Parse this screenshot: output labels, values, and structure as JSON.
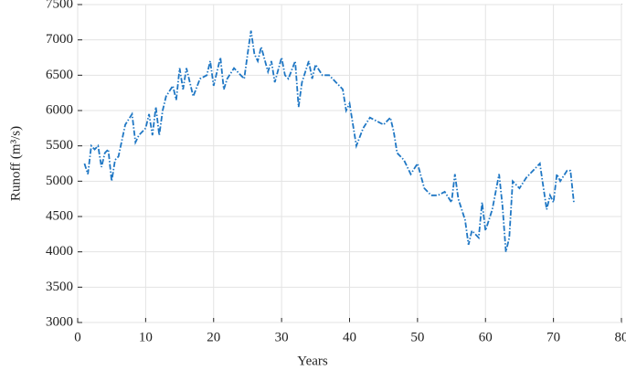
{
  "chart_data": {
    "type": "line",
    "xlabel": "Years",
    "ylabel": "Runoff (m³/s)",
    "xlim": [
      0,
      80
    ],
    "ylim": [
      3000,
      7500
    ],
    "xticks": [
      0,
      10,
      20,
      30,
      40,
      50,
      60,
      70,
      80
    ],
    "yticks": [
      3000,
      3500,
      4000,
      4500,
      5000,
      5500,
      6000,
      6500,
      7000,
      7500
    ],
    "grid": true,
    "series": [
      {
        "color": "#1f77c4",
        "x": [
          1,
          1.5,
          2,
          2.5,
          3,
          3.5,
          4,
          4.5,
          5,
          5.5,
          6,
          7,
          8,
          8.5,
          9,
          10,
          10.5,
          11,
          11.5,
          12,
          12.5,
          13,
          14,
          14.5,
          15,
          15.5,
          16,
          17,
          18,
          19,
          19.5,
          20,
          21,
          21.5,
          22,
          23,
          24,
          24.5,
          25,
          25.5,
          26,
          26.5,
          27,
          28,
          28.5,
          29,
          30,
          30.5,
          31,
          32,
          32.5,
          33,
          34,
          34.5,
          35,
          36,
          37,
          38,
          39,
          39.5,
          40,
          41,
          42,
          43,
          44,
          45,
          46,
          46.5,
          47,
          48,
          49,
          50,
          51,
          52,
          53,
          54,
          55,
          55.5,
          56,
          57,
          57.5,
          58,
          59,
          59.5,
          60,
          61,
          62,
          62.5,
          63,
          63.5,
          64,
          65,
          66,
          67,
          68,
          69,
          69.5,
          70,
          70.5,
          71,
          72,
          72.5,
          73
        ],
        "values": [
          5250,
          5100,
          5500,
          5450,
          5500,
          5200,
          5400,
          5450,
          5000,
          5300,
          5350,
          5800,
          5950,
          5550,
          5650,
          5750,
          5950,
          5650,
          6050,
          5650,
          6000,
          6200,
          6350,
          6150,
          6600,
          6300,
          6600,
          6200,
          6450,
          6500,
          6700,
          6350,
          6750,
          6300,
          6450,
          6600,
          6500,
          6450,
          6800,
          7130,
          6800,
          6700,
          6900,
          6550,
          6700,
          6400,
          6750,
          6500,
          6450,
          6700,
          6050,
          6400,
          6700,
          6450,
          6650,
          6500,
          6500,
          6400,
          6300,
          6000,
          6100,
          5500,
          5750,
          5900,
          5850,
          5800,
          5900,
          5700,
          5400,
          5300,
          5100,
          5250,
          4900,
          4800,
          4800,
          4850,
          4700,
          5100,
          4750,
          4450,
          4100,
          4300,
          4200,
          4700,
          4300,
          4600,
          5100,
          4650,
          4000,
          4200,
          5000,
          4900,
          5050,
          5150,
          5250,
          4600,
          4800,
          4700,
          5100,
          5000,
          5150,
          5150,
          4700
        ]
      }
    ]
  }
}
